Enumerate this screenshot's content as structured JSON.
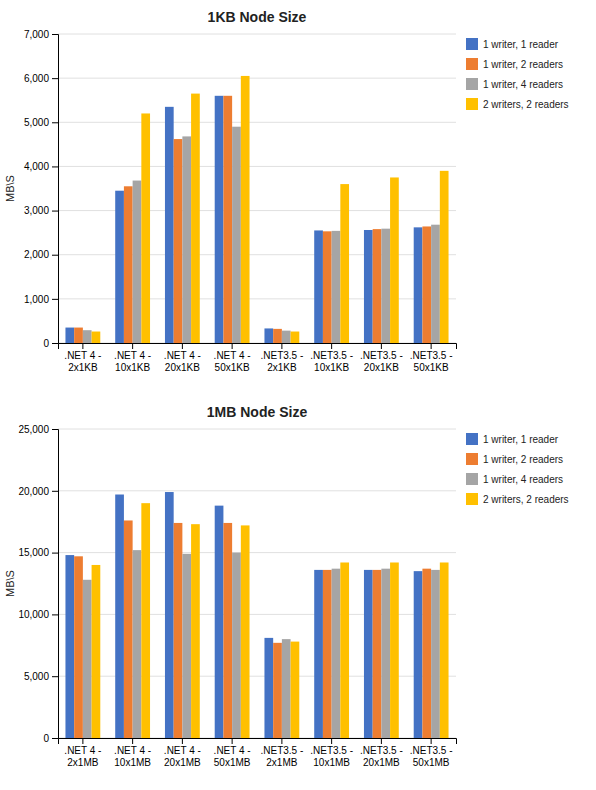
{
  "chart_data": [
    {
      "type": "bar",
      "title": "1KB Node Size",
      "categories": [
        ".NET 4 -\n2x1KB",
        ".NET 4 -\n10x1KB",
        ".NET 4 -\n20x1KB",
        ".NET 4 -\n50x1KB",
        ".NET3.5 -\n2x1KB",
        ".NET3.5 -\n10x1KB",
        ".NET3.5 -\n20x1KB",
        ".NET3.5 -\n50x1KB"
      ],
      "series": [
        {
          "name": "1 writer, 1 reader",
          "color": "#4472C4",
          "values": [
            350,
            3450,
            5350,
            5600,
            330,
            2550,
            2560,
            2620
          ]
        },
        {
          "name": "1 writer, 2 readers",
          "color": "#ED7D31",
          "values": [
            350,
            3550,
            4620,
            5600,
            320,
            2530,
            2580,
            2640
          ]
        },
        {
          "name": "1 writer, 4 readers",
          "color": "#A5A5A5",
          "values": [
            290,
            3680,
            4680,
            4900,
            280,
            2540,
            2590,
            2680
          ]
        },
        {
          "name": "2 writers, 2 readers",
          "color": "#FFC000",
          "values": [
            260,
            5200,
            5650,
            6050,
            260,
            3600,
            3750,
            3900
          ]
        }
      ],
      "ylabel": "MB\\S",
      "ylim": [
        0,
        7000
      ],
      "yticks": [
        0,
        {
          "value": 1000,
          "label": "1,000"
        },
        {
          "value": 2000,
          "label": "2,000"
        },
        {
          "value": 3000,
          "label": "3,000"
        },
        {
          "value": 4000,
          "label": "4,000"
        },
        {
          "value": 5000,
          "label": "5,000"
        },
        {
          "value": 6000,
          "label": "6,000"
        },
        {
          "value": 7000,
          "label": "7,000"
        }
      ],
      "grid": true,
      "legend": "right"
    },
    {
      "type": "bar",
      "title": "1MB Node Size",
      "categories": [
        ".NET 4 -\n2x1MB",
        ".NET 4 -\n10x1MB",
        ".NET 4 -\n20x1MB",
        ".NET 4 -\n50x1MB",
        ".NET3.5 -\n2x1MB",
        ".NET3.5 -\n10x1MB",
        ".NET3.5 -\n20x1MB",
        ".NET3.5 -\n50x1MB"
      ],
      "series": [
        {
          "name": "1 writer, 1 reader",
          "color": "#4472C4",
          "values": [
            14800,
            19700,
            19900,
            18800,
            8100,
            13600,
            13600,
            13500
          ]
        },
        {
          "name": "1 writer, 2 readers",
          "color": "#ED7D31",
          "values": [
            14700,
            17600,
            17400,
            17400,
            7700,
            13600,
            13600,
            13700
          ]
        },
        {
          "name": "1 writer, 4 readers",
          "color": "#A5A5A5",
          "values": [
            12800,
            15200,
            14900,
            15000,
            8000,
            13700,
            13700,
            13600
          ]
        },
        {
          "name": "2 writers, 2 readers",
          "color": "#FFC000",
          "values": [
            14000,
            19000,
            17300,
            17200,
            7800,
            14200,
            14200,
            14200
          ]
        }
      ],
      "ylabel": "MB\\S",
      "ylim": [
        0,
        25000
      ],
      "yticks": [
        0,
        {
          "value": 5000,
          "label": "5,000"
        },
        {
          "value": 10000,
          "label": "10,000"
        },
        {
          "value": 15000,
          "label": "15,000"
        },
        {
          "value": 20000,
          "label": "20,000"
        },
        {
          "value": 25000,
          "label": "25,000"
        }
      ],
      "grid": true,
      "legend": "right"
    }
  ]
}
